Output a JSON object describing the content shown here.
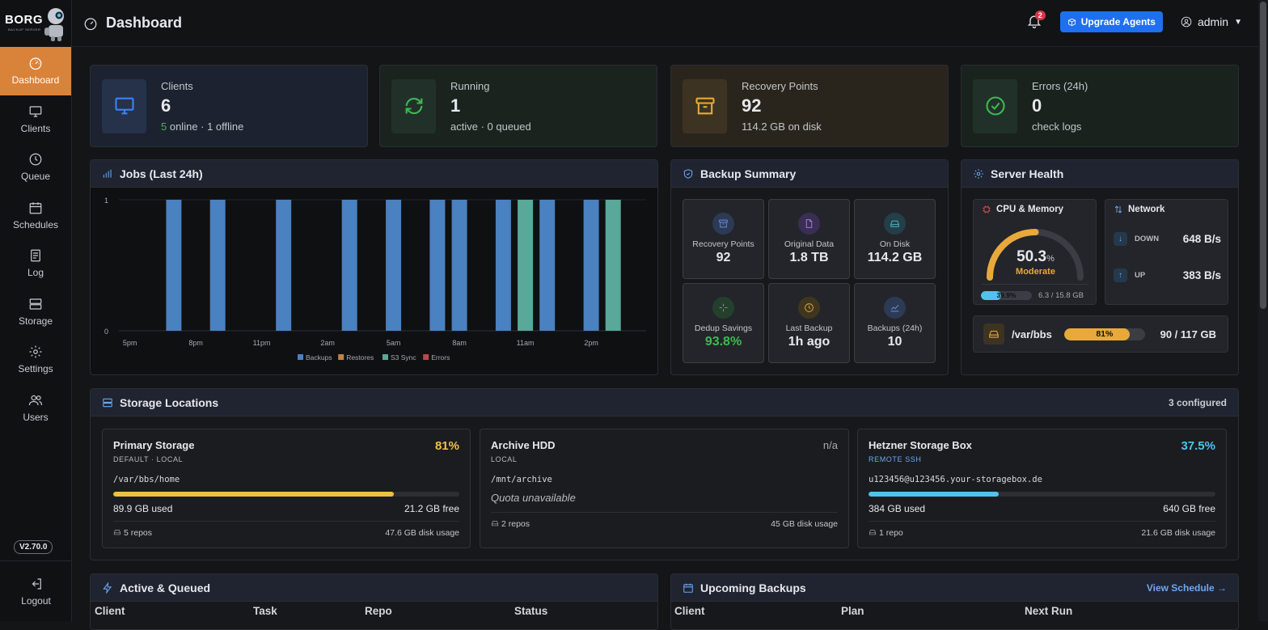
{
  "app": {
    "logo_text": "BORG",
    "logo_sub": "BACKUP SERVER",
    "version": "V2.70.0",
    "logout": "Logout"
  },
  "sidebar": {
    "items": [
      {
        "label": "Dashboard",
        "icon": "gauge-icon",
        "active": true
      },
      {
        "label": "Clients",
        "icon": "monitor-icon"
      },
      {
        "label": "Queue",
        "icon": "clock-icon"
      },
      {
        "label": "Schedules",
        "icon": "calendar-icon"
      },
      {
        "label": "Log",
        "icon": "file-text-icon"
      },
      {
        "label": "Storage",
        "icon": "storage-icon"
      },
      {
        "label": "Settings",
        "icon": "gear-icon"
      },
      {
        "label": "Users",
        "icon": "users-icon"
      }
    ]
  },
  "header": {
    "title": "Dashboard",
    "notif_count": "2",
    "upgrade_label": "Upgrade Agents",
    "user": "admin"
  },
  "stats": [
    {
      "label": "Clients",
      "value": "6",
      "sub_highlight": "5",
      "sub": " online · 1 offline",
      "icon": "monitor-icon",
      "color": "#3b82f6"
    },
    {
      "label": "Running",
      "value": "1",
      "sub": "active · 0 queued",
      "icon": "refresh-icon",
      "color": "#3fb950"
    },
    {
      "label": "Recovery Points",
      "value": "92",
      "sub": "114.2 GB on disk",
      "icon": "archive-icon",
      "color": "#e8a93a"
    },
    {
      "label": "Errors (24h)",
      "value": "0",
      "sub": "check logs",
      "icon": "check-circle-icon",
      "color": "#3fb950"
    }
  ],
  "jobs": {
    "title": "Jobs (Last 24h)"
  },
  "chart_data": {
    "type": "bar",
    "title": "",
    "x_labels": [
      "5pm",
      "8pm",
      "11pm",
      "2am",
      "5am",
      "8am",
      "11am",
      "2pm"
    ],
    "slots": 24,
    "ylim": [
      0,
      1
    ],
    "yticks": [
      "0",
      "1"
    ],
    "series": [
      {
        "name": "Backups",
        "color": "#4a81c0",
        "values": [
          0,
          0,
          1,
          0,
          1,
          0,
          0,
          1,
          0,
          0,
          1,
          0,
          1,
          0,
          1,
          1,
          0,
          1,
          0,
          1,
          0,
          1,
          0,
          0
        ]
      },
      {
        "name": "Restores",
        "color": "#c0824a",
        "values": [
          0,
          0,
          0,
          0,
          0,
          0,
          0,
          0,
          0,
          0,
          0,
          0,
          0,
          0,
          0,
          0,
          0,
          0,
          0,
          0,
          0,
          0,
          0,
          0
        ]
      },
      {
        "name": "S3 Sync",
        "color": "#5aa89a",
        "values": [
          0,
          0,
          0,
          0,
          0,
          0,
          0,
          0,
          0,
          0,
          0,
          0,
          0,
          0,
          0,
          0,
          0,
          0,
          1,
          0,
          0,
          0,
          1,
          0
        ]
      },
      {
        "name": "Errors",
        "color": "#c0454a",
        "values": [
          0,
          0,
          0,
          0,
          0,
          0,
          0,
          0,
          0,
          0,
          0,
          0,
          0,
          0,
          0,
          0,
          0,
          0,
          0,
          0,
          0,
          0,
          0,
          0
        ]
      }
    ]
  },
  "backup_summary": {
    "title": "Backup Summary",
    "cards": [
      {
        "label": "Recovery Points",
        "value": "92",
        "icon": "archive-icon",
        "color": "#6b8fd6"
      },
      {
        "label": "Original Data",
        "value": "1.8 TB",
        "icon": "file-icon",
        "color": "#a07ad6"
      },
      {
        "label": "On Disk",
        "value": "114.2 GB",
        "icon": "hdd-icon",
        "color": "#4fb0c6"
      },
      {
        "label": "Dedup Savings",
        "value": "93.8%",
        "icon": "sparkle-icon",
        "color": "#3fb950",
        "value_color": "#3fb950"
      },
      {
        "label": "Last Backup",
        "value": "1h ago",
        "icon": "clock-icon",
        "color": "#d9a441"
      },
      {
        "label": "Backups (24h)",
        "value": "10",
        "icon": "trend-icon",
        "color": "#6b8fd6"
      }
    ]
  },
  "server_health": {
    "title": "Server Health",
    "cpu_title": "CPU & Memory",
    "cpu_value": "50.3",
    "cpu_unit": "%",
    "cpu_percent": 50.3,
    "cpu_status": "Moderate",
    "mem_label": "39.9%",
    "mem_percent": 39.9,
    "mem_detail": "6.3 / 15.8 GB",
    "network_title": "Network",
    "down_label": "DOWN",
    "down_value": "648 B/s",
    "up_label": "UP",
    "up_value": "383 B/s",
    "disk_path": "/var/bbs",
    "disk_label": "81%",
    "disk_percent": 81,
    "disk_detail": "90 / 117 GB"
  },
  "storage": {
    "title": "Storage Locations",
    "count": "3 configured",
    "locations": [
      {
        "name": "Primary Storage",
        "pct": "81%",
        "pct_color": "#f0c040",
        "meta": "DEFAULT · LOCAL",
        "meta_color": "#b7bac0",
        "path": "/var/bbs/home",
        "fill_percent": 81,
        "fill_color": "#f0c040",
        "used": "89.9 GB used",
        "free": "21.2 GB free",
        "repos": "5 repos",
        "usage": "47.6 GB disk usage"
      },
      {
        "name": "Archive HDD",
        "pct": "n/a",
        "pct_color": "#a6a9ae",
        "meta": "LOCAL",
        "meta_color": "#b7bac0",
        "path": "/mnt/archive",
        "quota": "Quota unavailable",
        "repos": "2 repos",
        "usage": "45 GB disk usage"
      },
      {
        "name": "Hetzner Storage Box",
        "pct": "37.5%",
        "pct_color": "#4fc3ee",
        "meta": "REMOTE SSH",
        "meta_color": "#6ea8f0",
        "path": "u123456@u123456.your-storagebox.de",
        "fill_percent": 37.5,
        "fill_color": "#4fc3ee",
        "used": "384 GB used",
        "free": "640 GB free",
        "repos": "1 repo",
        "usage": "21.6 GB disk usage"
      }
    ]
  },
  "active": {
    "title": "Active & Queued",
    "columns": [
      "Client",
      "Task",
      "Repo",
      "Status"
    ]
  },
  "upcoming": {
    "title": "Upcoming Backups",
    "link": "View Schedule →",
    "columns": [
      "Client",
      "Plan",
      "Next Run"
    ]
  }
}
